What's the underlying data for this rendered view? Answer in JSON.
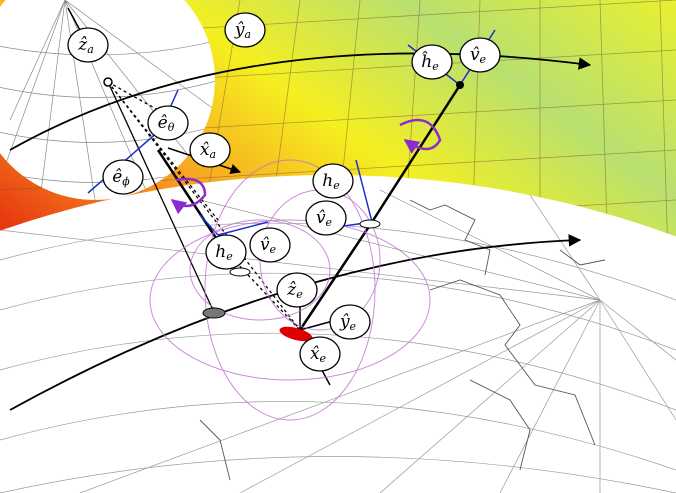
{
  "nodes": [
    {
      "symbol": "ẑ",
      "subscript": "a"
    },
    {
      "symbol": "ŷ",
      "subscript": "a"
    },
    {
      "symbol": "ĥ",
      "subscript": "e"
    },
    {
      "symbol": "v̂",
      "subscript": "e"
    },
    {
      "symbol": "ê",
      "subscript": "θ"
    },
    {
      "symbol": "x̂",
      "subscript": "a"
    },
    {
      "symbol": "ê",
      "subscript": "ϕ"
    },
    {
      "symbol": "h",
      "subscript": "e"
    },
    {
      "symbol": "v̂",
      "subscript": "e"
    },
    {
      "symbol": "h",
      "subscript": "e"
    },
    {
      "symbol": "v̂",
      "subscript": "e"
    },
    {
      "symbol": "ẑ",
      "subscript": "e"
    },
    {
      "symbol": "ŷ",
      "subscript": "e"
    },
    {
      "symbol": "x̂",
      "subscript": "e"
    }
  ]
}
